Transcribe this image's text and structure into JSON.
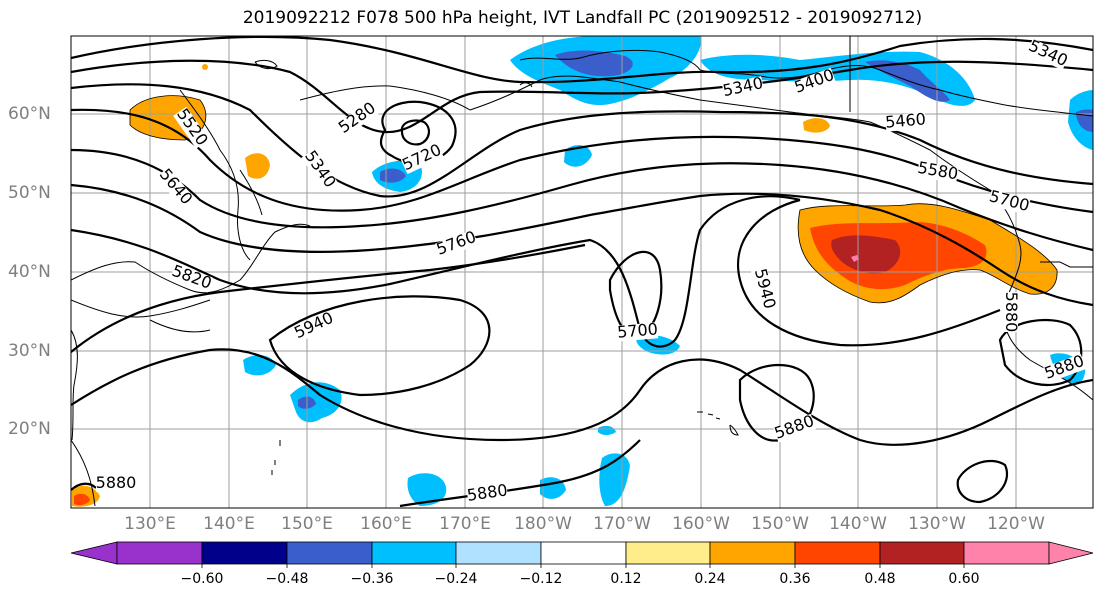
{
  "title": "2019092212 F078 500 hPa height, IVT Landfall PC (2019092512 - 2019092712)",
  "lat_labels": [
    "60°N",
    "50°N",
    "40°N",
    "30°N",
    "20°N"
  ],
  "lon_labels": [
    "130°E",
    "140°E",
    "150°E",
    "160°E",
    "170°E",
    "180°W",
    "170°W",
    "160°W",
    "150°W",
    "140°W",
    "130°W",
    "120°W"
  ],
  "contour_labels": [
    "5340",
    "5400",
    "5340",
    "5280",
    "5520",
    "5340",
    "5720",
    "5460",
    "5580",
    "5640",
    "5700",
    "5760",
    "5820",
    "5940",
    "5940",
    "5700",
    "5880",
    "5880",
    "5880",
    "5880",
    "5880"
  ],
  "colorbar": {
    "colors": [
      "#9932cc",
      "#00008b",
      "#3a5fcd",
      "#00bfff",
      "#b0e2ff",
      "#ffffff",
      "#ffec8b",
      "#ffa500",
      "#ff4500",
      "#b22222",
      "#ff82ab"
    ],
    "tick_labels": [
      "−0.60",
      "−0.48",
      "−0.36",
      "−0.24",
      "−0.12",
      "0.12",
      "0.24",
      "0.36",
      "0.48",
      "0.60"
    ]
  }
}
